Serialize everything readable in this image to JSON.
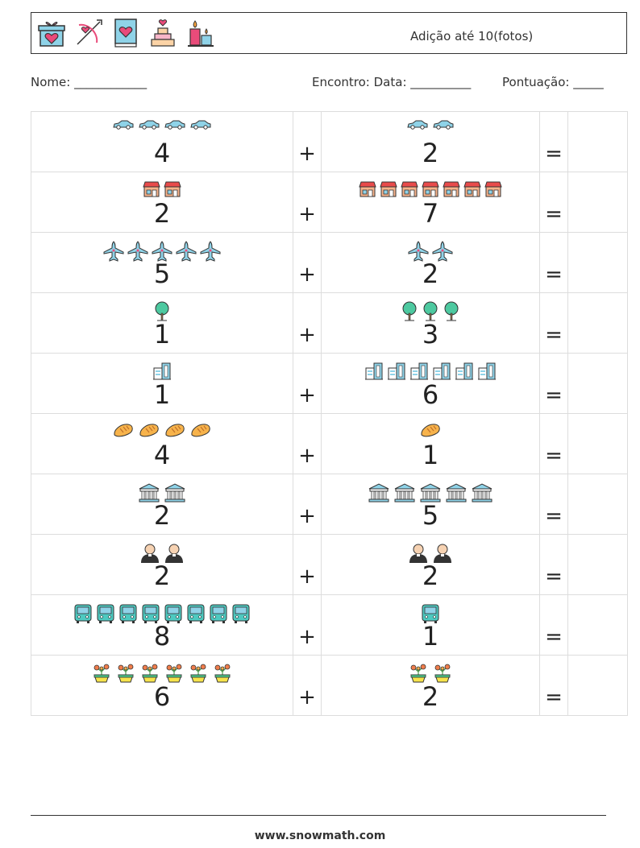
{
  "header": {
    "title": "Adição até 10(fotos)",
    "icons": [
      "gift-heart-icon",
      "cupid-bow-arrow-icon",
      "love-book-icon",
      "wedding-cake-icon",
      "candles-icon"
    ]
  },
  "info": {
    "name_label": "Nome:",
    "name_blank": "____________",
    "date_label": "Encontro: Data:",
    "date_blank": "__________",
    "score_label": "Pontuação:",
    "score_blank": "_____"
  },
  "problems": [
    {
      "a": "4",
      "a_icon": "car-icon",
      "b": "2",
      "b_icon": "car-icon",
      "plus": "+",
      "equals": "="
    },
    {
      "a": "2",
      "a_icon": "shop-icon",
      "b": "7",
      "b_icon": "shop-icon",
      "plus": "+",
      "equals": "="
    },
    {
      "a": "5",
      "a_icon": "airplane-icon",
      "b": "2",
      "b_icon": "airplane-icon",
      "plus": "+",
      "equals": "="
    },
    {
      "a": "1",
      "a_icon": "tree-icon",
      "b": "3",
      "b_icon": "tree-icon",
      "plus": "+",
      "equals": "="
    },
    {
      "a": "1",
      "a_icon": "building-icon",
      "b": "6",
      "b_icon": "building-icon",
      "plus": "+",
      "equals": "="
    },
    {
      "a": "4",
      "a_icon": "bread-icon",
      "b": "1",
      "b_icon": "bread-icon",
      "plus": "+",
      "equals": "="
    },
    {
      "a": "2",
      "a_icon": "museum-icon",
      "b": "5",
      "b_icon": "museum-icon",
      "plus": "+",
      "equals": "="
    },
    {
      "a": "2",
      "a_icon": "priest-icon",
      "b": "2",
      "b_icon": "priest-icon",
      "plus": "+",
      "equals": "="
    },
    {
      "a": "8",
      "a_icon": "bus-icon",
      "b": "1",
      "b_icon": "bus-icon",
      "plus": "+",
      "equals": "="
    },
    {
      "a": "6",
      "a_icon": "flower-pot-icon",
      "b": "2",
      "b_icon": "flower-pot-icon",
      "plus": "+",
      "equals": "="
    }
  ],
  "footer": {
    "url": "www.snowmath.com"
  }
}
